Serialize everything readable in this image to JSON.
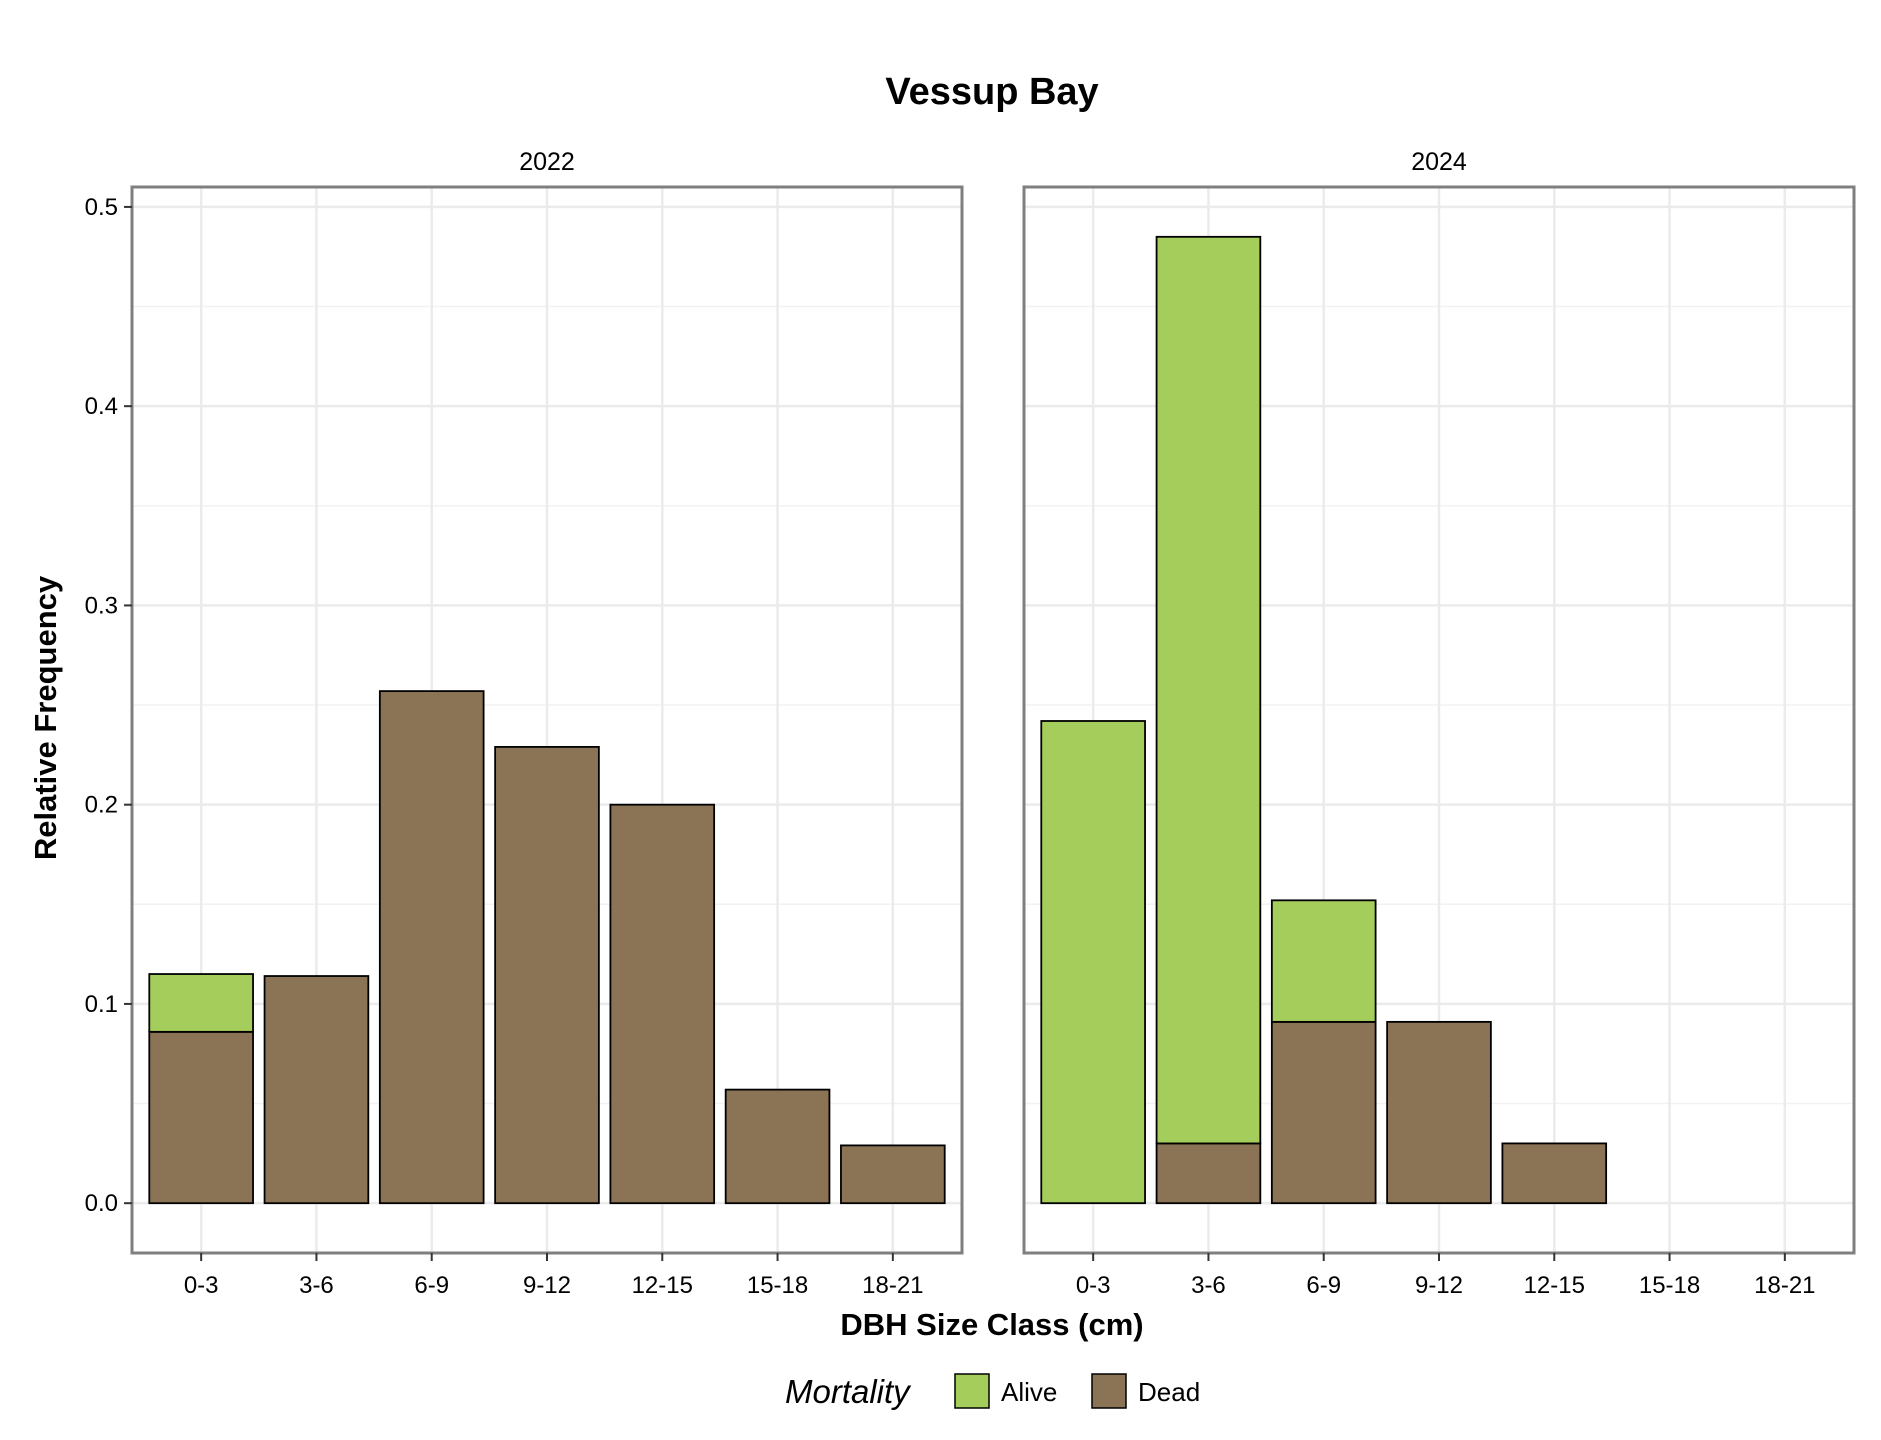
{
  "chart_data": {
    "type": "bar",
    "stacked": true,
    "title": "Vessup Bay",
    "xlabel": "DBH Size Class (cm)",
    "ylabel": "Relative Frequency",
    "ylim": [
      -0.025,
      0.51
    ],
    "yticks": [
      "0.0",
      "0.1",
      "0.2",
      "0.3",
      "0.4",
      "0.5"
    ],
    "categories": [
      "0-3",
      "3-6",
      "6-9",
      "9-12",
      "12-15",
      "15-18",
      "18-21"
    ],
    "legend": {
      "title": "Mortality",
      "position": "bottom",
      "entries": [
        {
          "name": "Alive",
          "color": "#a5cd5c"
        },
        {
          "name": "Dead",
          "color": "#8b7355"
        }
      ]
    },
    "grid": true,
    "panels": [
      {
        "label": "2022",
        "series": [
          {
            "name": "Dead",
            "values": [
              0.086,
              0.114,
              0.257,
              0.229,
              0.2,
              0.057,
              0.029
            ]
          },
          {
            "name": "Alive",
            "values": [
              0.029,
              0,
              0,
              0,
              0,
              0,
              0
            ]
          }
        ]
      },
      {
        "label": "2024",
        "series": [
          {
            "name": "Dead",
            "values": [
              0,
              0.03,
              0.091,
              0.091,
              0.03,
              0,
              0
            ]
          },
          {
            "name": "Alive",
            "values": [
              0.242,
              0.455,
              0.061,
              0,
              0,
              0,
              0
            ]
          }
        ]
      }
    ]
  }
}
